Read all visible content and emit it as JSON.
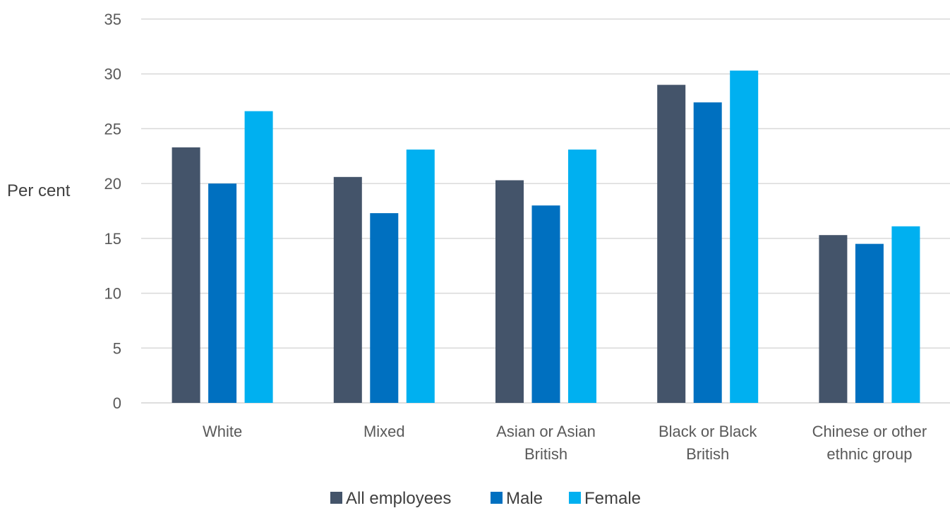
{
  "chart_data": {
    "type": "bar",
    "title": "",
    "xlabel": "",
    "ylabel": "Per cent",
    "ylim": [
      0,
      35
    ],
    "yticks": [
      0,
      5,
      10,
      15,
      20,
      25,
      30,
      35
    ],
    "grid": true,
    "legend_position": "bottom",
    "categories": [
      [
        "White"
      ],
      [
        "Mixed"
      ],
      [
        "Asian or Asian",
        "British"
      ],
      [
        "Black or Black",
        "British"
      ],
      [
        "Chinese or other",
        "ethnic group"
      ]
    ],
    "series": [
      {
        "name": "All employees",
        "color": "#44546a",
        "values": [
          23.3,
          20.6,
          20.3,
          29.0,
          15.3
        ]
      },
      {
        "name": "Male",
        "color": "#0070c0",
        "values": [
          20.0,
          17.3,
          18.0,
          27.4,
          14.5
        ]
      },
      {
        "name": "Female",
        "color": "#00b0f0",
        "values": [
          26.6,
          23.1,
          23.1,
          30.3,
          16.1
        ]
      }
    ]
  }
}
